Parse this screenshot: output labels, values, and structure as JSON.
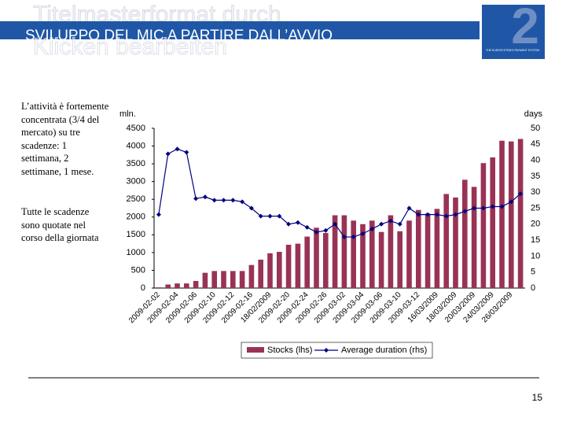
{
  "ghost_title": [
    "Titelmasterformat durch",
    "Klicken bearbeiten"
  ],
  "title": "SVILUPPO DEL MIC A PARTIRE DALL’AVVIO",
  "logo": {
    "number": "2",
    "text": "THE EUROSYSTEM'S PAYMENT SYSTEM"
  },
  "text": [
    "L’attività è fortemente concentrata (3/4 del mercato) su tre scadenze: 1 settimana, 2 settimane, 1 mese.",
    "Tutte le scadenze sono quotate nel corso della giornata"
  ],
  "page_number": "15",
  "chart_data": {
    "type": "bar_line",
    "ylabel": "mln.",
    "y2label": "days",
    "categories": [
      "2009-02-02",
      null,
      "2009-02-04",
      null,
      "2009-02-06",
      null,
      "2009-02-10",
      null,
      "2009-02-12",
      null,
      "2009-02-16",
      null,
      "18/02/2009",
      null,
      "2009-02-20",
      null,
      "2009-02-24",
      null,
      "2009-02-26",
      null,
      "2009-03-02",
      null,
      "2009-03-04",
      null,
      "2009-03-06",
      null,
      "2009-03-10",
      null,
      "2009-03-12",
      null,
      "16/03/2009",
      null,
      "18/03/2009",
      null,
      "20/03/2009",
      null,
      "24/03/2009",
      null,
      "26/03/2009",
      null
    ],
    "series": [
      {
        "name": "Stocks (lhs)",
        "type": "bar",
        "color": "#993355",
        "axis": "y",
        "values": [
          20,
          100,
          130,
          130,
          200,
          430,
          480,
          480,
          480,
          480,
          650,
          800,
          980,
          1020,
          1220,
          1250,
          1450,
          1700,
          1550,
          2050,
          2050,
          1900,
          1800,
          1900,
          1580,
          2050,
          1600,
          1900,
          2200,
          2100,
          2230,
          2650,
          2550,
          3050,
          2850,
          3520,
          3680,
          4150,
          4130,
          4200
        ]
      },
      {
        "name": "Average duration (rhs)",
        "type": "line",
        "color": "#000080",
        "axis": "y2",
        "values": [
          23,
          42,
          43.5,
          42.5,
          28,
          28.5,
          27.5,
          27.5,
          27.5,
          27,
          25,
          22.5,
          22.5,
          22.5,
          20,
          20.5,
          19,
          17.5,
          18,
          20,
          16,
          16,
          17,
          18.5,
          20,
          21,
          20,
          25,
          23,
          23,
          23,
          22.5,
          23,
          24,
          25,
          25,
          25.5,
          25.5,
          27,
          29.5
        ]
      }
    ],
    "ylim": [
      0,
      4500
    ],
    "yticks": [
      0,
      500,
      1000,
      1500,
      2000,
      2500,
      3000,
      3500,
      4000,
      4500
    ],
    "y2lim": [
      0,
      50
    ],
    "y2ticks": [
      0,
      5,
      10,
      15,
      20,
      25,
      30,
      35,
      40,
      45,
      50
    ],
    "legend": "bottom"
  }
}
